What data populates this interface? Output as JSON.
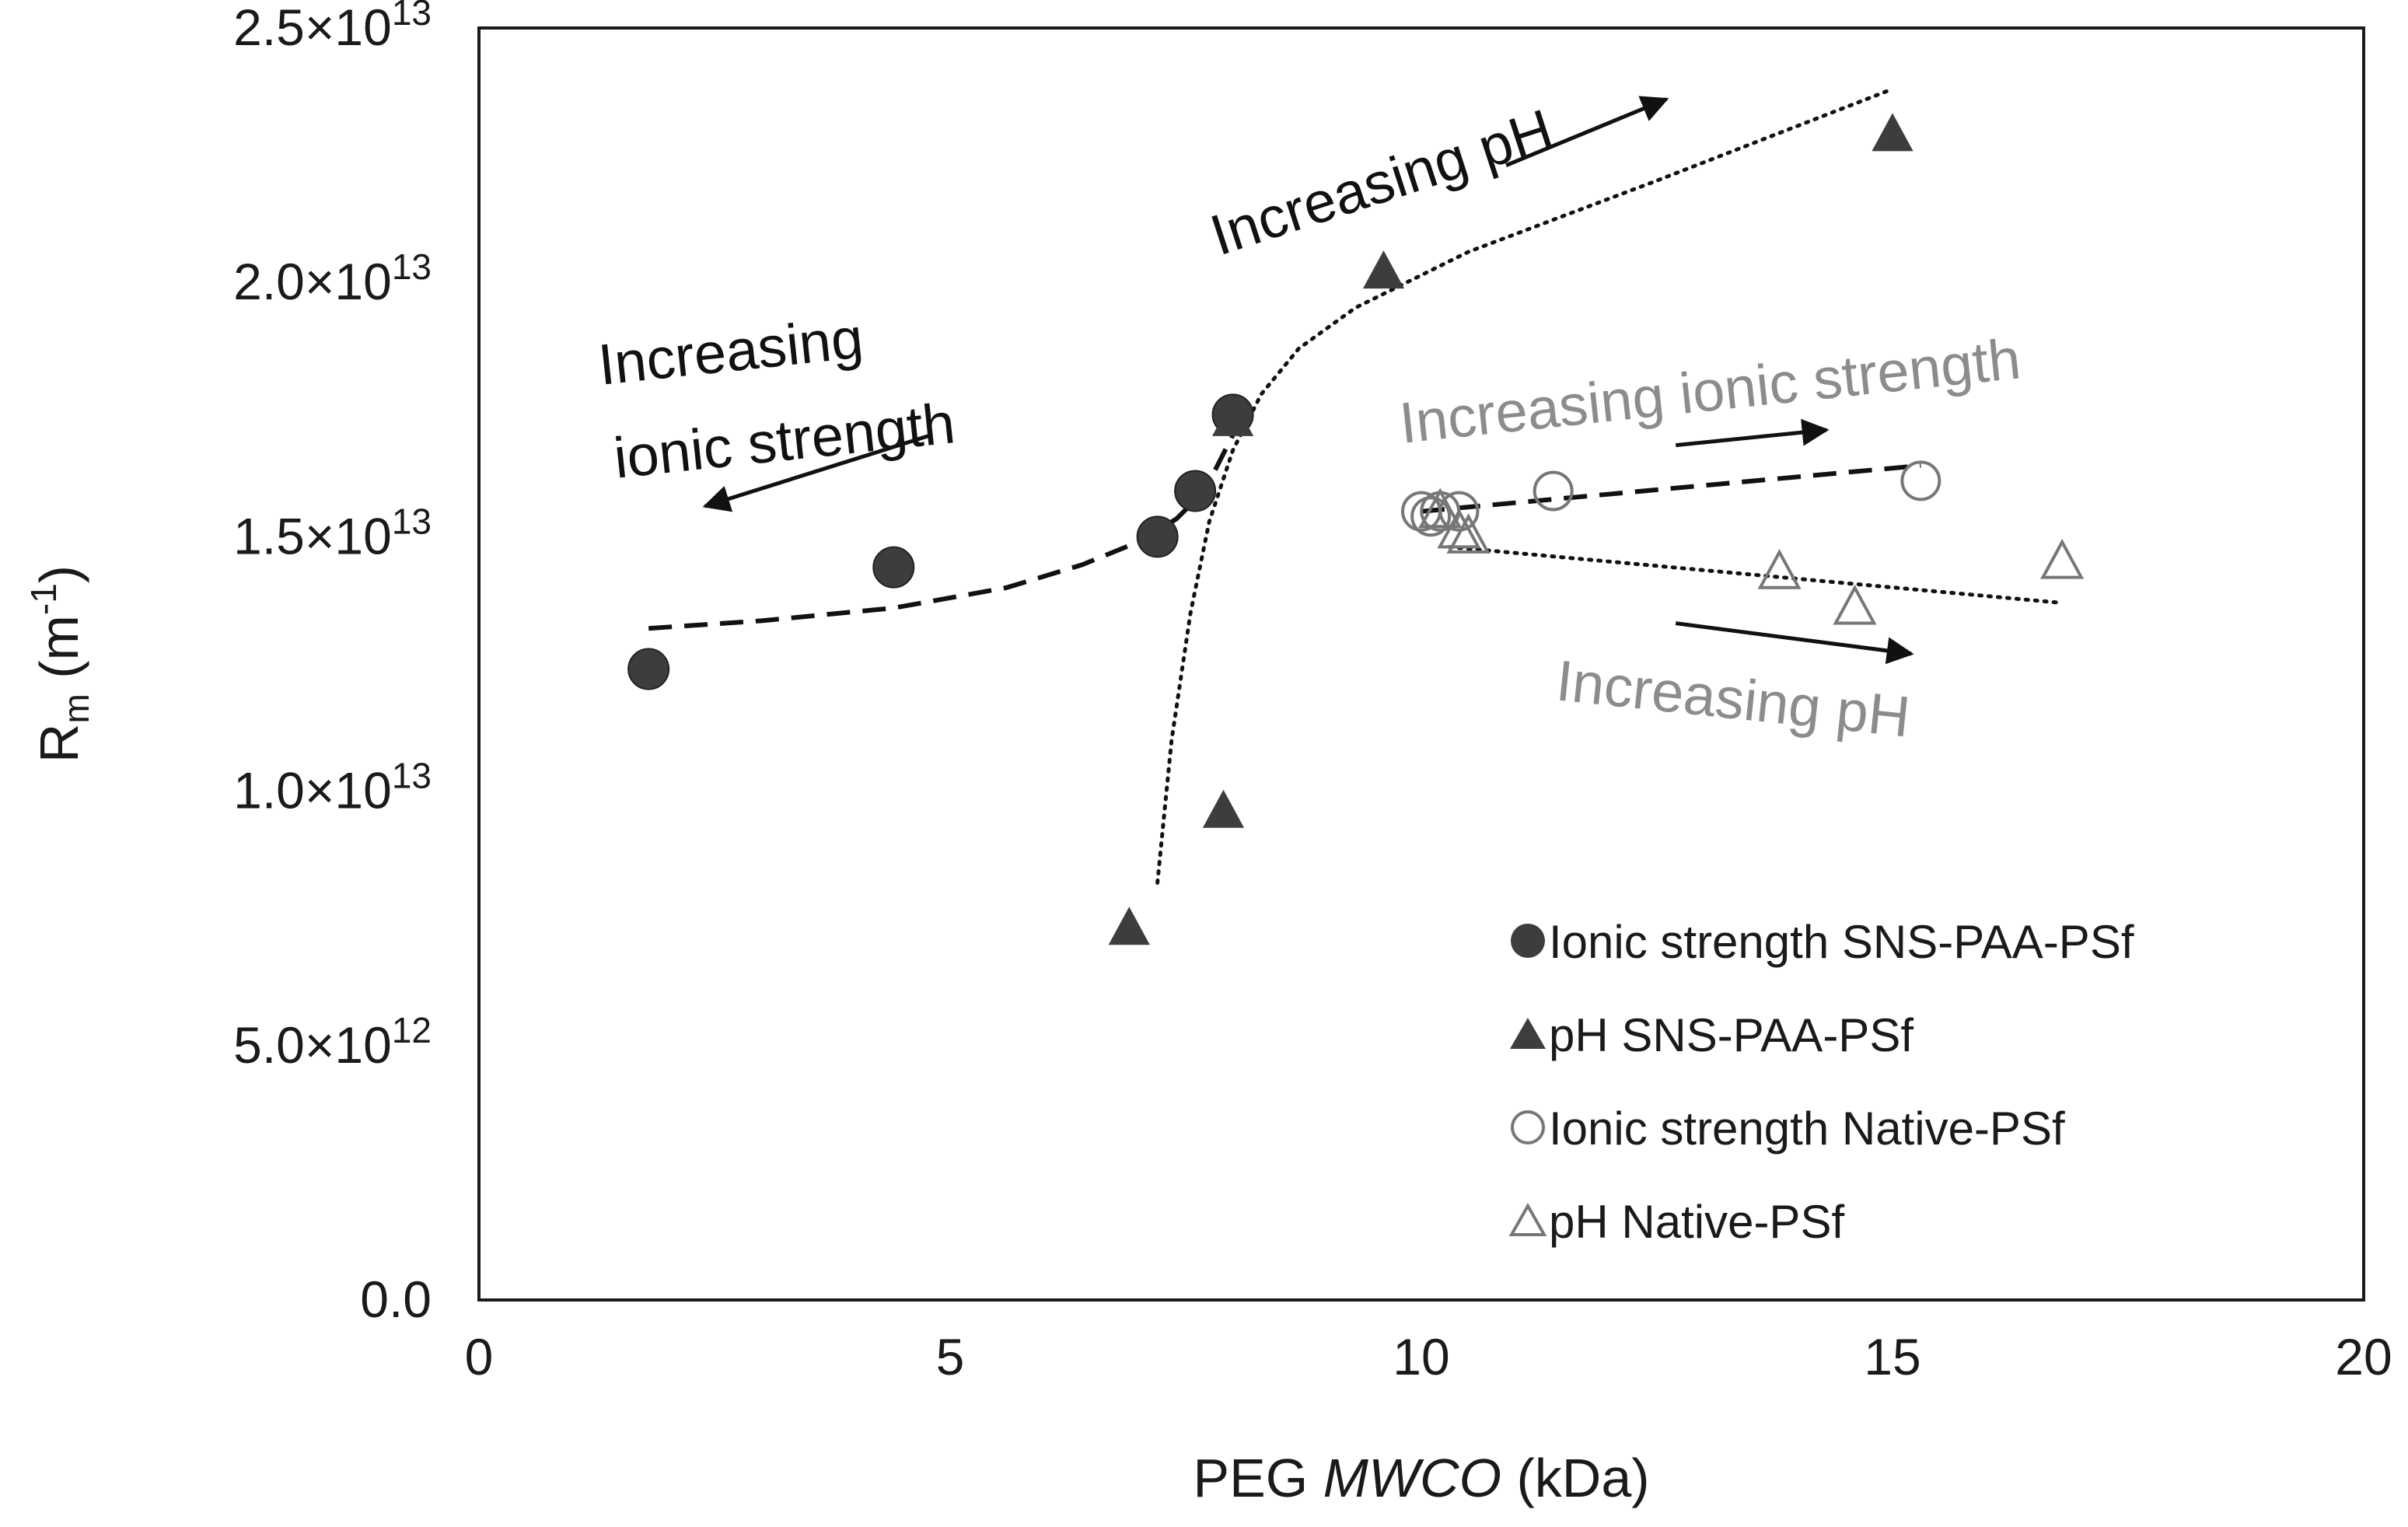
{
  "colors": {
    "filled": "#3d3d3d",
    "open": "#777777",
    "gray_text": "#8c8c8c",
    "axis": "#1a1a1a"
  },
  "chart_data": {
    "type": "scatter",
    "title": "",
    "xlabel_prefix": "PEG ",
    "xlabel_italic": "MWCO",
    "xlabel_suffix": " (kDa)",
    "ylabel_main": "R",
    "ylabel_sub": "m",
    "ylabel_open": " (m",
    "ylabel_sup": "-1",
    "ylabel_close": ")",
    "xlim": [
      0,
      20
    ],
    "ylim": [
      0,
      25000000000000
    ],
    "x_ticks": [
      {
        "value": 0,
        "label": "0"
      },
      {
        "value": 5,
        "label": "5"
      },
      {
        "value": 10,
        "label": "10"
      },
      {
        "value": 15,
        "label": "15"
      },
      {
        "value": 20,
        "label": "20"
      }
    ],
    "y_ticks": [
      {
        "value": 0,
        "base": "0.0",
        "exp": ""
      },
      {
        "value": 5000000000000,
        "base": "5.0×10",
        "exp": "12"
      },
      {
        "value": 10000000000000,
        "base": "1.0×10",
        "exp": "13"
      },
      {
        "value": 15000000000000,
        "base": "1.5×10",
        "exp": "13"
      },
      {
        "value": 20000000000000,
        "base": "2.0×10",
        "exp": "13"
      },
      {
        "value": 25000000000000,
        "base": "2.5×10",
        "exp": "13"
      }
    ],
    "series": [
      {
        "name": "Ionic strength SNS-PAA-PSf",
        "marker": "filled-circle",
        "x": [
          1.8,
          4.4,
          7.2,
          7.6,
          8.0
        ],
        "y": [
          12400000000000,
          14400000000000,
          15000000000000,
          15900000000000,
          17400000000000
        ]
      },
      {
        "name": "pH SNS-PAA-PSf",
        "marker": "filled-triangle",
        "x": [
          6.9,
          7.9,
          8.0,
          9.6,
          15.0
        ],
        "y": [
          7300000000000,
          9600000000000,
          17300000000000,
          20200000000000,
          22900000000000
        ]
      },
      {
        "name": "Ionic strength Native-PSf",
        "marker": "open-circle",
        "x": [
          10.0,
          10.1,
          10.2,
          10.4,
          11.4,
          15.3
        ],
        "y": [
          15500000000000,
          15400000000000,
          15500000000000,
          15500000000000,
          15900000000000,
          16100000000000
        ]
      },
      {
        "name": "pH Native-PSf",
        "marker": "open-triangle",
        "x": [
          10.2,
          10.4,
          10.5,
          13.8,
          14.6,
          16.8
        ],
        "y": [
          15500000000000,
          15100000000000,
          15000000000000,
          14300000000000,
          13600000000000,
          14500000000000
        ]
      }
    ],
    "trendlines": [
      {
        "series": "Ionic strength SNS-PAA-PSf",
        "style": "dashed",
        "x": [
          1.8,
          3.0,
          4.4,
          5.6,
          6.4,
          7.0,
          7.4,
          7.7,
          8.0
        ],
        "y": [
          13200000000000,
          13350000000000,
          13600000000000,
          14000000000000,
          14450000000000,
          14900000000000,
          15350000000000,
          15900000000000,
          17000000000000
        ]
      },
      {
        "series": "pH SNS-PAA-PSf",
        "style": "dotted",
        "x": [
          7.2,
          7.35,
          7.55,
          7.75,
          8.0,
          8.3,
          8.7,
          9.3,
          10.5,
          12.5,
          15.0
        ],
        "y": [
          8200000000000,
          11000000000000,
          13500000000000,
          15300000000000,
          16700000000000,
          17800000000000,
          18700000000000,
          19500000000000,
          20600000000000,
          22000000000000,
          23800000000000
        ]
      },
      {
        "series": "Ionic strength Native-PSf",
        "style": "dashed",
        "x": [
          10.0,
          15.3
        ],
        "y": [
          15500000000000,
          16400000000000
        ]
      },
      {
        "series": "pH Native-PSf",
        "style": "dotted",
        "x": [
          10.3,
          16.8
        ],
        "y": [
          14800000000000,
          13700000000000
        ]
      }
    ],
    "annotations": [
      {
        "text": "Increasing pH",
        "color": "dark",
        "arrow": {
          "x1": 10.9,
          "y1": 22300000000000,
          "x2": 12.6,
          "y2": 23600000000000
        }
      },
      {
        "text": "Increasing",
        "color": "dark"
      },
      {
        "text": "ionic strength",
        "color": "dark",
        "arrow": {
          "x1": 4.8,
          "y1": 17000000000000,
          "x2": 2.4,
          "y2": 15600000000000
        }
      },
      {
        "text": "Increasing ionic strength",
        "color": "gray",
        "arrow": {
          "x1": 12.7,
          "y1": 16800000000000,
          "x2": 14.3,
          "y2": 17100000000000
        }
      },
      {
        "text": "Increasing pH",
        "color": "gray",
        "arrow": {
          "x1": 12.7,
          "y1": 13300000000000,
          "x2": 15.2,
          "y2": 12700000000000
        }
      }
    ],
    "legend_position": "bottom-right"
  }
}
